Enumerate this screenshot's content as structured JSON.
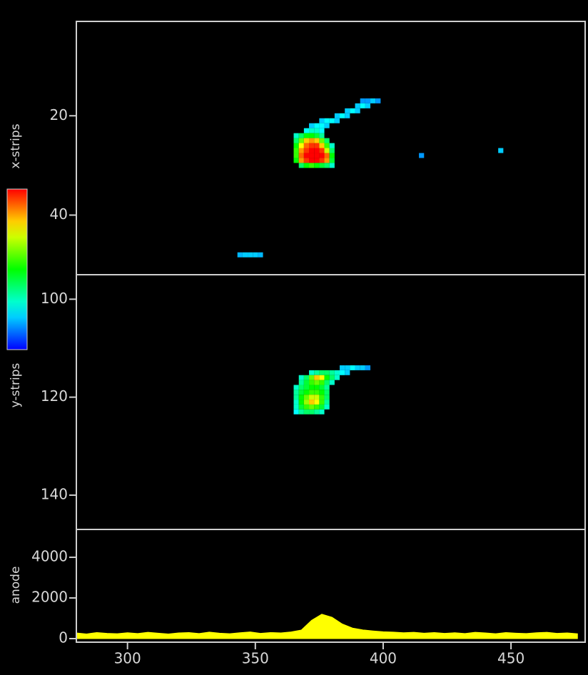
{
  "chart_data": [
    {
      "type": "heatmap",
      "ylabel": "x-strips",
      "colormap": "rainbow",
      "y_inverted": true,
      "xlim": [
        280,
        479
      ],
      "ylim": [
        1,
        52
      ],
      "yticks": [
        20,
        40
      ],
      "x": [
        392,
        394,
        396,
        398,
        390,
        392,
        394,
        386,
        388,
        390,
        382,
        384,
        386,
        376,
        378,
        380,
        382,
        372,
        374,
        376,
        378,
        370,
        372,
        374,
        376,
        366,
        368,
        370,
        372,
        374,
        376,
        366,
        368,
        370,
        372,
        374,
        376,
        378,
        366,
        368,
        370,
        372,
        374,
        376,
        378,
        380,
        366,
        368,
        370,
        372,
        374,
        376,
        378,
        380,
        366,
        368,
        370,
        372,
        374,
        376,
        378,
        380,
        366,
        368,
        370,
        372,
        374,
        376,
        378,
        380,
        368,
        370,
        372,
        374,
        376,
        378,
        380,
        415,
        446,
        344,
        346,
        348,
        350,
        352
      ],
      "y": [
        17,
        17,
        17,
        17,
        18,
        18,
        18,
        19,
        19,
        19,
        20,
        20,
        20,
        21,
        21,
        21,
        21,
        22,
        22,
        22,
        22,
        23,
        23,
        23,
        23,
        24,
        24,
        24,
        24,
        24,
        24,
        25,
        25,
        25,
        25,
        25,
        25,
        25,
        26,
        26,
        26,
        26,
        26,
        26,
        26,
        26,
        27,
        27,
        27,
        27,
        27,
        27,
        27,
        27,
        28,
        28,
        28,
        28,
        28,
        28,
        28,
        28,
        29,
        29,
        29,
        29,
        29,
        29,
        29,
        29,
        30,
        30,
        30,
        30,
        30,
        30,
        30,
        28,
        27,
        48,
        48,
        48,
        48,
        48
      ],
      "values": [
        0.15,
        0.15,
        0.2,
        0.15,
        0.2,
        0.25,
        0.2,
        0.2,
        0.25,
        0.2,
        0.2,
        0.25,
        0.2,
        0.2,
        0.25,
        0.25,
        0.2,
        0.2,
        0.25,
        0.25,
        0.2,
        0.25,
        0.3,
        0.3,
        0.25,
        0.3,
        0.4,
        0.5,
        0.5,
        0.45,
        0.35,
        0.4,
        0.6,
        0.8,
        0.85,
        0.8,
        0.6,
        0.4,
        0.5,
        0.75,
        0.9,
        0.95,
        0.95,
        0.8,
        0.55,
        0.3,
        0.55,
        0.85,
        0.95,
        1,
        1,
        0.95,
        0.7,
        0.4,
        0.55,
        0.9,
        1,
        1,
        1,
        1,
        0.9,
        0.5,
        0.5,
        0.85,
        0.95,
        1,
        1,
        0.95,
        0.85,
        0.45,
        0.4,
        0.5,
        0.55,
        0.5,
        0.45,
        0.4,
        0.3,
        0.15,
        0.2,
        0.18,
        0.2,
        0.2,
        0.2,
        0.18
      ]
    },
    {
      "type": "heatmap",
      "ylabel": "y-strips",
      "colormap": "rainbow",
      "y_inverted": true,
      "xlim": [
        280,
        479
      ],
      "ylim": [
        95,
        147
      ],
      "yticks": [
        100,
        120,
        140
      ],
      "x": [
        384,
        386,
        388,
        390,
        392,
        394,
        372,
        374,
        376,
        378,
        380,
        382,
        384,
        386,
        368,
        370,
        372,
        374,
        376,
        378,
        380,
        382,
        368,
        370,
        372,
        374,
        376,
        378,
        380,
        366,
        368,
        370,
        372,
        374,
        376,
        378,
        366,
        368,
        370,
        372,
        374,
        376,
        378,
        366,
        368,
        370,
        372,
        374,
        376,
        378,
        366,
        368,
        370,
        372,
        374,
        376,
        378,
        366,
        368,
        370,
        372,
        374,
        376,
        378,
        366,
        368,
        370,
        372,
        374,
        376
      ],
      "y": [
        114,
        114,
        114,
        114,
        114,
        114,
        115,
        115,
        115,
        115,
        115,
        115,
        115,
        115,
        116,
        116,
        116,
        116,
        116,
        116,
        116,
        116,
        117,
        117,
        117,
        117,
        117,
        117,
        117,
        118,
        118,
        118,
        118,
        118,
        118,
        118,
        119,
        119,
        119,
        119,
        119,
        119,
        119,
        120,
        120,
        120,
        120,
        120,
        120,
        120,
        121,
        121,
        121,
        121,
        121,
        121,
        121,
        122,
        122,
        122,
        122,
        122,
        122,
        122,
        123,
        123,
        123,
        123,
        123,
        123
      ],
      "values": [
        0.2,
        0.2,
        0.25,
        0.2,
        0.2,
        0.15,
        0.3,
        0.35,
        0.4,
        0.4,
        0.35,
        0.3,
        0.25,
        0.2,
        0.3,
        0.4,
        0.6,
        0.8,
        0.75,
        0.5,
        0.4,
        0.3,
        0.35,
        0.45,
        0.55,
        0.6,
        0.55,
        0.4,
        0.3,
        0.3,
        0.4,
        0.45,
        0.5,
        0.5,
        0.45,
        0.35,
        0.35,
        0.45,
        0.5,
        0.55,
        0.55,
        0.5,
        0.4,
        0.35,
        0.5,
        0.6,
        0.7,
        0.7,
        0.55,
        0.4,
        0.3,
        0.5,
        0.65,
        0.8,
        0.75,
        0.55,
        0.35,
        0.3,
        0.45,
        0.55,
        0.6,
        0.55,
        0.45,
        0.3,
        0.25,
        0.35,
        0.4,
        0.4,
        0.35,
        0.3
      ]
    },
    {
      "type": "area",
      "ylabel": "anode",
      "color": "#ffff00",
      "xlim": [
        280,
        479
      ],
      "ylim": [
        -175,
        5370
      ],
      "xticks": [
        300,
        350,
        400,
        450
      ],
      "yticks": [
        0,
        2000,
        4000
      ],
      "x": [
        280,
        284,
        288,
        292,
        296,
        300,
        304,
        308,
        312,
        316,
        320,
        324,
        328,
        332,
        336,
        340,
        344,
        348,
        352,
        356,
        360,
        364,
        368,
        372,
        376,
        380,
        384,
        388,
        392,
        396,
        400,
        404,
        408,
        412,
        416,
        420,
        424,
        428,
        432,
        436,
        440,
        444,
        448,
        452,
        456,
        460,
        464,
        468,
        472,
        476
      ],
      "values": [
        280,
        230,
        300,
        260,
        240,
        290,
        250,
        310,
        270,
        230,
        280,
        300,
        250,
        320,
        270,
        240,
        290,
        330,
        260,
        300,
        280,
        330,
        420,
        900,
        1200,
        1050,
        720,
        520,
        430,
        380,
        340,
        320,
        290,
        310,
        270,
        300,
        260,
        290,
        250,
        310,
        280,
        240,
        300,
        270,
        250,
        290,
        310,
        260,
        280,
        240
      ]
    }
  ]
}
